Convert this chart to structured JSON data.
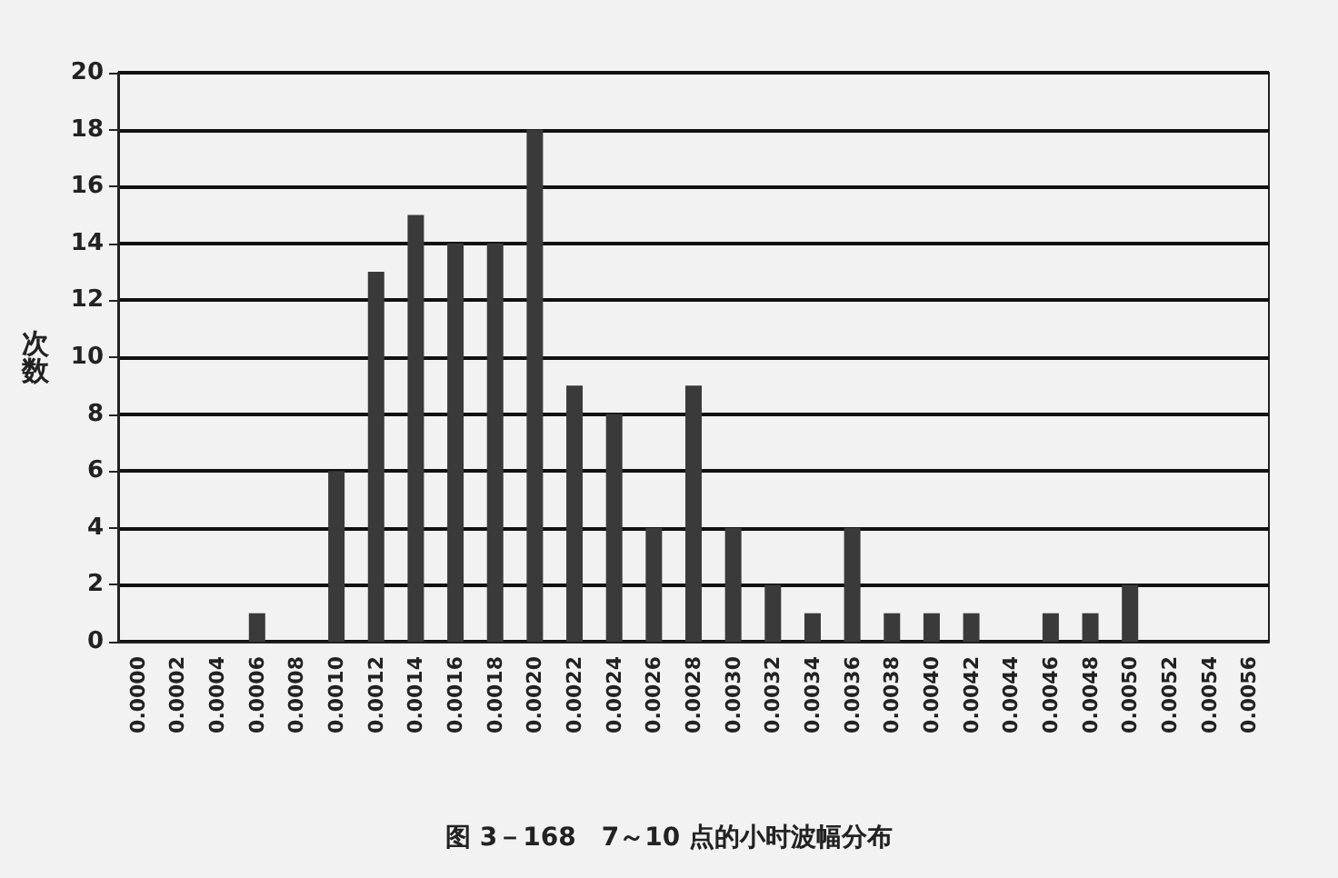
{
  "chart_data": {
    "type": "bar",
    "title": "图 3－168　7～10 点的小时波幅分布",
    "ylabel": "次数",
    "categories": [
      "0.0000",
      "0.0002",
      "0.0004",
      "0.0006",
      "0.0008",
      "0.0010",
      "0.0012",
      "0.0014",
      "0.0016",
      "0.0018",
      "0.0020",
      "0.0022",
      "0.0024",
      "0.0026",
      "0.0028",
      "0.0030",
      "0.0032",
      "0.0034",
      "0.0036",
      "0.0038",
      "0.0040",
      "0.0042",
      "0.0044",
      "0.0046",
      "0.0048",
      "0.0050",
      "0.0052",
      "0.0054",
      "0.0056"
    ],
    "values": [
      0,
      0,
      0,
      1,
      0,
      6,
      13,
      15,
      14,
      14,
      18,
      9,
      8,
      4,
      9,
      4,
      2,
      1,
      4,
      1,
      1,
      1,
      0,
      1,
      1,
      2,
      0,
      0,
      0
    ],
    "color": "#3a3a3a",
    "ylim": [
      0,
      20
    ],
    "yticks": [
      0,
      2,
      4,
      6,
      8,
      10,
      12,
      14,
      16,
      18,
      20
    ],
    "grid": "y"
  }
}
